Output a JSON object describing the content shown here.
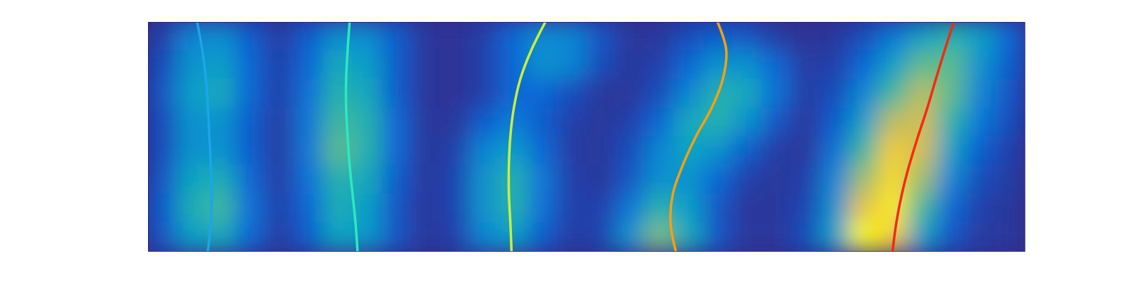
{
  "chart_data": {
    "type": "heatmap",
    "xlim": [
      0,
      30
    ],
    "ylim": [
      0,
      8
    ],
    "tick_labels": false,
    "zlim": [
      0,
      1
    ],
    "z": [
      [
        0.05,
        0.25,
        0.28,
        0.12,
        0.04,
        0.12,
        0.28,
        0.28,
        0.12,
        0.03,
        0.02,
        0.05,
        0.15,
        0.28,
        0.25,
        0.1,
        0.03,
        0.03,
        0.08,
        0.12,
        0.1,
        0.04,
        0.02,
        0.03,
        0.08,
        0.2,
        0.35,
        0.45,
        0.35,
        0.15
      ],
      [
        0.08,
        0.3,
        0.35,
        0.15,
        0.05,
        0.15,
        0.4,
        0.35,
        0.12,
        0.03,
        0.02,
        0.05,
        0.15,
        0.3,
        0.25,
        0.08,
        0.03,
        0.05,
        0.15,
        0.3,
        0.3,
        0.15,
        0.04,
        0.05,
        0.15,
        0.35,
        0.55,
        0.55,
        0.3,
        0.12
      ],
      [
        0.1,
        0.35,
        0.4,
        0.15,
        0.05,
        0.18,
        0.45,
        0.4,
        0.12,
        0.03,
        0.02,
        0.05,
        0.15,
        0.15,
        0.08,
        0.03,
        0.03,
        0.08,
        0.25,
        0.45,
        0.4,
        0.18,
        0.04,
        0.08,
        0.25,
        0.5,
        0.7,
        0.55,
        0.25,
        0.1
      ],
      [
        0.08,
        0.3,
        0.3,
        0.12,
        0.04,
        0.2,
        0.5,
        0.45,
        0.15,
        0.03,
        0.03,
        0.12,
        0.22,
        0.12,
        0.05,
        0.03,
        0.05,
        0.15,
        0.4,
        0.45,
        0.3,
        0.1,
        0.03,
        0.12,
        0.35,
        0.7,
        0.75,
        0.45,
        0.2,
        0.08
      ],
      [
        0.08,
        0.3,
        0.3,
        0.12,
        0.04,
        0.2,
        0.55,
        0.45,
        0.15,
        0.03,
        0.05,
        0.25,
        0.35,
        0.15,
        0.04,
        0.03,
        0.08,
        0.25,
        0.38,
        0.3,
        0.12,
        0.04,
        0.03,
        0.18,
        0.5,
        0.85,
        0.75,
        0.35,
        0.12,
        0.05
      ],
      [
        0.1,
        0.38,
        0.42,
        0.15,
        0.04,
        0.18,
        0.45,
        0.4,
        0.12,
        0.03,
        0.06,
        0.3,
        0.45,
        0.2,
        0.05,
        0.03,
        0.1,
        0.3,
        0.3,
        0.15,
        0.05,
        0.03,
        0.05,
        0.25,
        0.65,
        0.9,
        0.65,
        0.25,
        0.08,
        0.04
      ],
      [
        0.12,
        0.42,
        0.5,
        0.18,
        0.05,
        0.15,
        0.42,
        0.35,
        0.1,
        0.03,
        0.06,
        0.3,
        0.45,
        0.18,
        0.05,
        0.05,
        0.2,
        0.45,
        0.35,
        0.1,
        0.03,
        0.03,
        0.06,
        0.3,
        0.8,
        0.95,
        0.5,
        0.15,
        0.05,
        0.03
      ],
      [
        0.1,
        0.35,
        0.4,
        0.15,
        0.04,
        0.12,
        0.38,
        0.32,
        0.1,
        0.03,
        0.05,
        0.25,
        0.35,
        0.12,
        0.04,
        0.06,
        0.3,
        0.6,
        0.4,
        0.1,
        0.03,
        0.03,
        0.08,
        0.35,
        1.0,
        0.85,
        0.35,
        0.1,
        0.04,
        0.03
      ]
    ],
    "series": [
      {
        "color": "#1aa6e8",
        "type": "line",
        "x": [
          1.68,
          1.86,
          1.98,
          2.05,
          2.1,
          2.15,
          2.18,
          2.15,
          2.05
        ],
        "y": [
          0,
          1,
          2,
          3,
          4,
          5,
          6,
          7,
          8
        ]
      },
      {
        "color": "#2ee8c0",
        "type": "line",
        "x": [
          6.9,
          6.83,
          6.78,
          6.78,
          6.83,
          6.9,
          7.0,
          7.1,
          7.17
        ],
        "y": [
          0,
          1,
          2,
          3,
          4,
          5,
          6,
          7,
          8
        ]
      },
      {
        "color": "#c6f03e",
        "type": "line",
        "x": [
          13.6,
          13.11,
          12.74,
          12.52,
          12.4,
          12.35,
          12.35,
          12.4,
          12.44
        ],
        "y": [
          0,
          1,
          2,
          3,
          4,
          5,
          6,
          7,
          8
        ]
      },
      {
        "color": "#f5a012",
        "type": "line",
        "x": [
          19.49,
          19.79,
          19.67,
          19.29,
          18.75,
          18.3,
          17.96,
          17.88,
          18.06
        ],
        "y": [
          0,
          1,
          2,
          3,
          4,
          5,
          6,
          7,
          8
        ]
      },
      {
        "color": "#f52a10",
        "type": "line",
        "x": [
          27.58,
          27.26,
          26.96,
          26.67,
          26.35,
          26.05,
          25.8,
          25.61,
          25.48
        ],
        "y": [
          0,
          1,
          2,
          3,
          4,
          5,
          6,
          7,
          8
        ]
      }
    ]
  }
}
